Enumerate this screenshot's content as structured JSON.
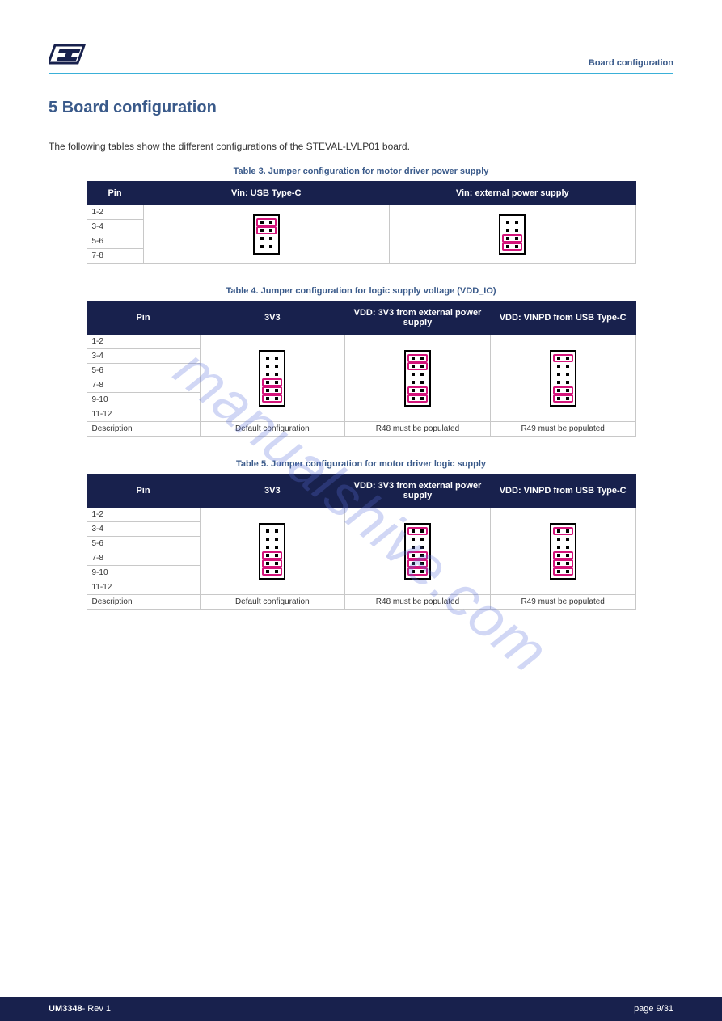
{
  "header": {
    "top_right": "Board configuration"
  },
  "section": {
    "number": "5",
    "title": "Board configuration"
  },
  "intro": "The following tables show the different configurations of the STEVAL-LVLP01 board.",
  "tables": [
    {
      "caption": "Table 3. Jumper configuration for motor driver power supply",
      "first_col_width": 70,
      "headers": [
        "Pin",
        "Vin: USB Type-C",
        "Vin: external power supply"
      ],
      "rows": [
        {
          "label": "1-2",
          "is_desc": false
        },
        {
          "label": "3-4",
          "is_desc": false
        },
        {
          "label": "5-6",
          "is_desc": false
        },
        {
          "label": "7-8",
          "is_desc": false
        }
      ],
      "block_rows": 4,
      "configs": [
        {
          "selected": [
            0,
            1
          ]
        },
        {
          "selected": [
            2,
            3
          ]
        }
      ]
    },
    {
      "caption": "Table 4. Jumper configuration for logic supply voltage (VDD_IO)",
      "first_col_width": 140,
      "headers": [
        "Pin",
        "3V3",
        "VDD: 3V3 from external power supply",
        "VDD: VINPD from USB Type-C"
      ],
      "rows": [
        {
          "label": "1-2",
          "is_desc": false
        },
        {
          "label": "3-4",
          "is_desc": false
        },
        {
          "label": "5-6",
          "is_desc": false
        },
        {
          "label": "7-8",
          "is_desc": false
        },
        {
          "label": "9-10",
          "is_desc": false
        },
        {
          "label": "11-12",
          "is_desc": false
        },
        {
          "label": "Description",
          "is_desc": true
        }
      ],
      "block_rows": 6,
      "configs": [
        {
          "selected": [
            3,
            4,
            5
          ],
          "desc": "Default configuration"
        },
        {
          "selected": [
            0,
            1,
            4,
            5
          ],
          "desc": "R48 must be populated"
        },
        {
          "selected": [
            0,
            4,
            5
          ],
          "desc": "R49 must be populated"
        }
      ]
    },
    {
      "caption": "Table 5. Jumper configuration for motor driver logic supply",
      "first_col_width": 140,
      "headers": [
        "Pin",
        "3V3",
        "VDD: 3V3 from external power supply",
        "VDD: VINPD from USB Type-C"
      ],
      "rows": [
        {
          "label": "1-2",
          "is_desc": false
        },
        {
          "label": "3-4",
          "is_desc": false
        },
        {
          "label": "5-6",
          "is_desc": false
        },
        {
          "label": "7-8",
          "is_desc": false
        },
        {
          "label": "9-10",
          "is_desc": false
        },
        {
          "label": "11-12",
          "is_desc": false
        },
        {
          "label": "Description",
          "is_desc": true
        }
      ],
      "block_rows": 6,
      "configs": [
        {
          "selected": [
            3,
            4,
            5
          ],
          "desc": "Default configuration"
        },
        {
          "selected": [
            0,
            3,
            4,
            5
          ],
          "desc": "R48 must be populated"
        },
        {
          "selected": [
            0,
            3,
            4,
            5
          ],
          "desc": "R49 must be populated"
        }
      ]
    }
  ],
  "footer": {
    "doc": "UM3348",
    "rev": "- Rev 1",
    "page": "page 9/31"
  },
  "watermark": "manualshive.com",
  "colors": {
    "navy": "#18214d",
    "rule": "#3ab0d8",
    "magenta": "#d4147a",
    "heading": "#3a5a8a"
  }
}
